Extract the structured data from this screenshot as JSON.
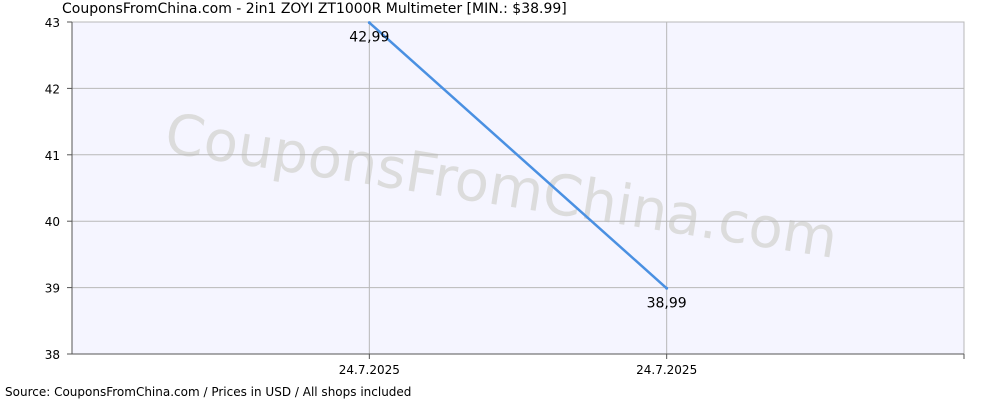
{
  "chart_data": {
    "type": "line",
    "title": "CouponsFromChina.com - 2in1 ZOYI ZT1000R Multimeter [MIN.: $38.99]",
    "footer": "Source: CouponsFromChina.com / Prices in USD / All shops included",
    "watermark": "CouponsFromChina.com",
    "x_categories": [
      "24.7.2025",
      "24.7.2025"
    ],
    "y_ticks": [
      38,
      39,
      40,
      41,
      42,
      43
    ],
    "ylim": [
      38,
      43
    ],
    "grid": true,
    "series": [
      {
        "values": [
          42.99,
          38.99
        ],
        "point_labels": [
          "42,99",
          "38,99"
        ],
        "color": "#4a90e2"
      }
    ]
  },
  "colors": {
    "plot_background": "#f5f5ff",
    "grid": "#b8b8b8",
    "axis": "#555555",
    "line": "#4a90e2",
    "watermark": "#dcdcdc"
  }
}
